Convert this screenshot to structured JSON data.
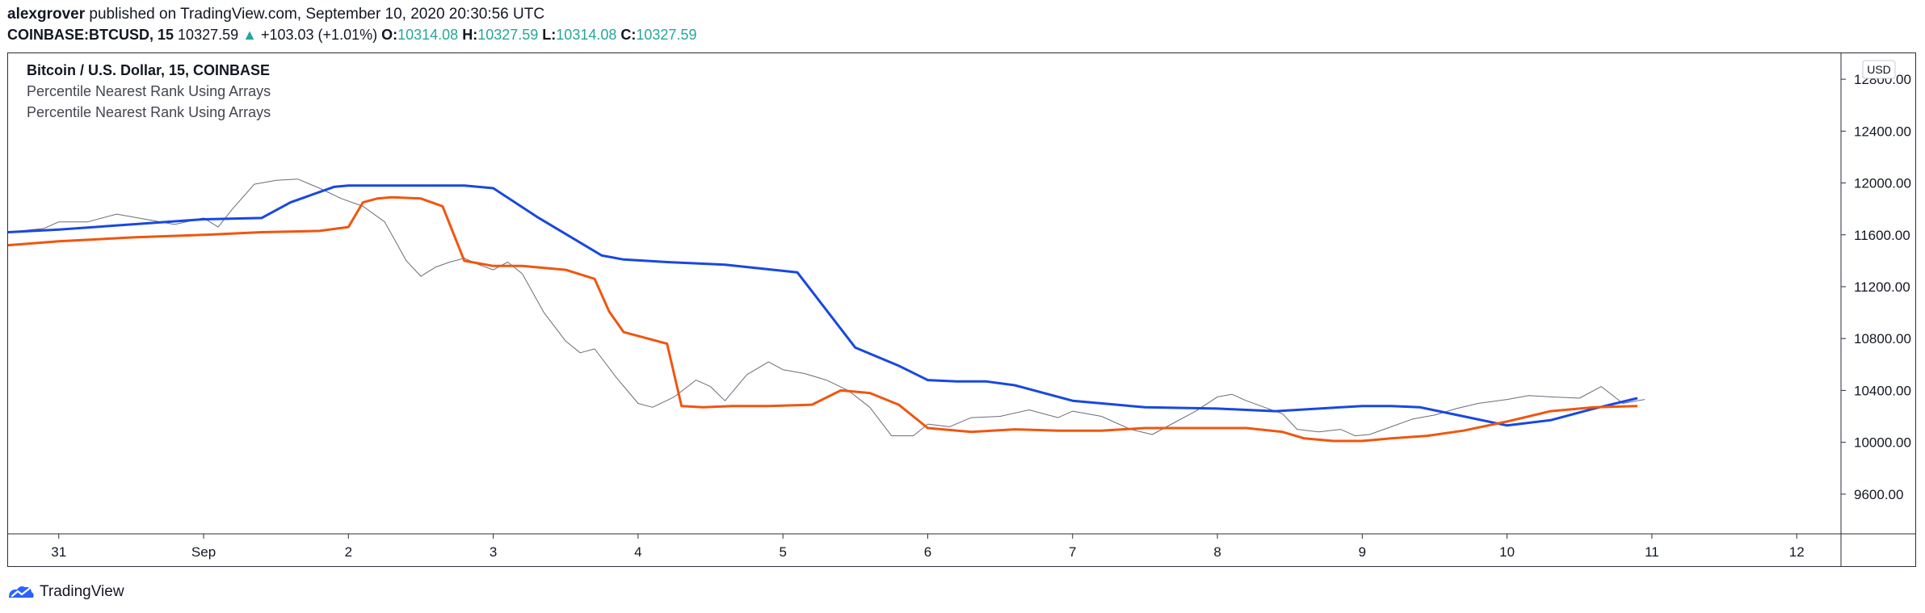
{
  "header": {
    "author": "alexgrover",
    "published_text": " published on TradingView.com, September 10, 2020 20:30:56 UTC",
    "symbol": "COINBASE:BTCUSD, 15",
    "last_price": "10327.59",
    "change": "+103.03 (+1.01%)",
    "o_label": "O:",
    "o_value": "10314.08",
    "h_label": "H:",
    "h_value": "10327.59",
    "l_label": "L:",
    "l_value": "10314.08",
    "c_label": "C:",
    "c_value": "10327.59"
  },
  "legend": {
    "title": "Bitcoin / U.S. Dollar, 15, COINBASE",
    "indicator1": "Percentile Nearest Rank Using Arrays",
    "indicator2": "Percentile Nearest Rank Using Arrays"
  },
  "footer": {
    "brand": "TradingView"
  },
  "colors": {
    "upper": "#1848e0",
    "lower": "#f0560f",
    "price": "#6a6d78",
    "up": "#26a69a"
  },
  "chart_data": {
    "type": "line",
    "currency_label": "USD",
    "y_ticks": [
      12800,
      12400,
      12000,
      11600,
      11200,
      10800,
      10400,
      10000,
      9600
    ],
    "ylim": [
      9300,
      13000
    ],
    "xlim": [
      30.65,
      12.3
    ],
    "x_ticks": [
      {
        "label": "31",
        "x": 31.0
      },
      {
        "label": "Sep",
        "x": 32.0
      },
      {
        "label": "2",
        "x": 33.0
      },
      {
        "label": "3",
        "x": 34.0
      },
      {
        "label": "4",
        "x": 35.0
      },
      {
        "label": "5",
        "x": 36.0
      },
      {
        "label": "6",
        "x": 37.0
      },
      {
        "label": "7",
        "x": 38.0
      },
      {
        "label": "8",
        "x": 39.0
      },
      {
        "label": "9",
        "x": 40.0
      },
      {
        "label": "10",
        "x": 41.0
      },
      {
        "label": "11",
        "x": 42.0
      },
      {
        "label": "12",
        "x": 43.0
      }
    ],
    "x_domain": [
      30.65,
      43.3
    ],
    "series": [
      {
        "key": "price",
        "x": [
          30.65,
          30.9,
          31.0,
          31.2,
          31.4,
          31.6,
          31.8,
          32.0,
          32.1,
          32.2,
          32.35,
          32.5,
          32.65,
          32.8,
          32.95,
          33.1,
          33.25,
          33.4,
          33.5,
          33.6,
          33.7,
          33.8,
          33.9,
          34.0,
          34.1,
          34.2,
          34.35,
          34.5,
          34.6,
          34.7,
          34.85,
          35.0,
          35.1,
          35.25,
          35.4,
          35.5,
          35.6,
          35.75,
          35.9,
          36.0,
          36.15,
          36.3,
          36.45,
          36.6,
          36.75,
          36.9,
          37.0,
          37.15,
          37.3,
          37.5,
          37.7,
          37.9,
          38.0,
          38.2,
          38.4,
          38.55,
          38.7,
          38.85,
          39.0,
          39.1,
          39.2,
          39.3,
          39.45,
          39.55,
          39.7,
          39.85,
          39.95,
          40.05,
          40.2,
          40.35,
          40.5,
          40.65,
          40.8,
          41.0,
          41.15,
          41.3,
          41.5,
          41.65,
          41.8,
          41.95
        ],
        "values": [
          11620,
          11650,
          11700,
          11700,
          11760,
          11720,
          11680,
          11730,
          11660,
          11800,
          11990,
          12020,
          12030,
          11960,
          11880,
          11820,
          11700,
          11400,
          11280,
          11350,
          11390,
          11420,
          11370,
          11330,
          11390,
          11300,
          11000,
          10780,
          10690,
          10720,
          10500,
          10300,
          10270,
          10350,
          10480,
          10430,
          10320,
          10520,
          10620,
          10560,
          10530,
          10480,
          10400,
          10270,
          10050,
          10050,
          10140,
          10120,
          10190,
          10200,
          10250,
          10190,
          10240,
          10200,
          10100,
          10060,
          10150,
          10240,
          10350,
          10370,
          10320,
          10280,
          10220,
          10100,
          10080,
          10100,
          10050,
          10060,
          10120,
          10180,
          10210,
          10260,
          10300,
          10330,
          10360,
          10350,
          10340,
          10430,
          10300,
          10330
        ]
      },
      {
        "key": "upper",
        "x": [
          30.65,
          31.0,
          31.5,
          32.0,
          32.4,
          32.6,
          32.9,
          33.0,
          33.2,
          33.8,
          34.0,
          34.15,
          34.3,
          34.75,
          34.9,
          35.2,
          35.6,
          36.1,
          36.5,
          36.8,
          37.0,
          37.2,
          37.4,
          37.6,
          38.0,
          38.5,
          39.0,
          39.2,
          39.4,
          40.0,
          40.2,
          40.4,
          40.7,
          41.0,
          41.3,
          41.6,
          41.9
        ],
        "values": [
          11620,
          11640,
          11680,
          11720,
          11730,
          11850,
          11970,
          11980,
          11980,
          11980,
          11960,
          11850,
          11740,
          11440,
          11410,
          11390,
          11370,
          11310,
          10730,
          10590,
          10480,
          10470,
          10470,
          10440,
          10320,
          10270,
          10260,
          10250,
          10240,
          10280,
          10280,
          10270,
          10200,
          10130,
          10170,
          10260,
          10340
        ]
      },
      {
        "key": "lower",
        "x": [
          30.65,
          31.0,
          31.5,
          32.0,
          32.4,
          32.8,
          33.0,
          33.1,
          33.2,
          33.3,
          33.5,
          33.65,
          33.8,
          34.0,
          34.2,
          34.5,
          34.7,
          34.8,
          34.9,
          35.2,
          35.3,
          35.45,
          35.65,
          35.9,
          36.2,
          36.4,
          36.6,
          36.8,
          37.0,
          37.3,
          37.6,
          37.9,
          38.2,
          38.5,
          39.0,
          39.2,
          39.45,
          39.6,
          39.8,
          40.0,
          40.2,
          40.45,
          40.7,
          41.0,
          41.3,
          41.6,
          41.9
        ],
        "values": [
          11520,
          11550,
          11580,
          11600,
          11620,
          11630,
          11660,
          11850,
          11880,
          11890,
          11880,
          11820,
          11400,
          11360,
          11360,
          11330,
          11260,
          11010,
          10850,
          10760,
          10280,
          10270,
          10280,
          10280,
          10290,
          10400,
          10380,
          10290,
          10110,
          10080,
          10100,
          10090,
          10090,
          10110,
          10110,
          10110,
          10080,
          10030,
          10010,
          10010,
          10030,
          10050,
          10090,
          10160,
          10240,
          10270,
          10280
        ]
      }
    ]
  }
}
